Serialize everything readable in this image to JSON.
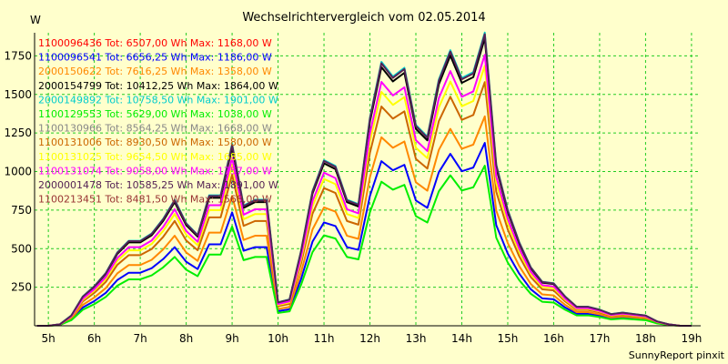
{
  "chart_data": {
    "type": "line",
    "title": "Wechselrichtervergleich vom 02.05.2014",
    "ylabel": "W",
    "footer": "SunnyReport pinxit",
    "background": "#ffffcc",
    "grid": true,
    "grid_color": "#22cc22",
    "legend_position": "top-left",
    "xlim": [
      4.7,
      19.2
    ],
    "ylim": [
      0,
      1900
    ],
    "x_ticks": [
      {
        "value": 5,
        "label": "5h"
      },
      {
        "value": 6,
        "label": "6h"
      },
      {
        "value": 7,
        "label": "7h"
      },
      {
        "value": 8,
        "label": "8h"
      },
      {
        "value": 9,
        "label": "9h"
      },
      {
        "value": 10,
        "label": "10h"
      },
      {
        "value": 11,
        "label": "11h"
      },
      {
        "value": 12,
        "label": "12h"
      },
      {
        "value": 13,
        "label": "13h"
      },
      {
        "value": 14,
        "label": "14h"
      },
      {
        "value": 15,
        "label": "15h"
      },
      {
        "value": 16,
        "label": "16h"
      },
      {
        "value": 17,
        "label": "17h"
      },
      {
        "value": 18,
        "label": "18h"
      },
      {
        "value": 19,
        "label": "19h"
      }
    ],
    "y_ticks": [
      {
        "value": 250,
        "label": "250"
      },
      {
        "value": 500,
        "label": "500"
      },
      {
        "value": 750,
        "label": "750"
      },
      {
        "value": 1000,
        "label": "1000"
      },
      {
        "value": 1250,
        "label": "1250"
      },
      {
        "value": 1500,
        "label": "1500"
      },
      {
        "value": 1750,
        "label": "1750"
      }
    ],
    "x": [
      4.75,
      5.0,
      5.25,
      5.5,
      5.75,
      6.0,
      6.25,
      6.5,
      6.75,
      7.0,
      7.25,
      7.5,
      7.75,
      8.0,
      8.25,
      8.5,
      8.75,
      9.0,
      9.25,
      9.5,
      9.75,
      10.0,
      10.25,
      10.5,
      10.75,
      11.0,
      11.25,
      11.5,
      11.75,
      12.0,
      12.25,
      12.5,
      12.75,
      13.0,
      13.25,
      13.5,
      13.75,
      14.0,
      14.25,
      14.5,
      14.75,
      15.0,
      15.25,
      15.5,
      15.75,
      16.0,
      16.25,
      16.5,
      16.75,
      17.0,
      17.25,
      17.5,
      17.75,
      18.0,
      18.25,
      18.5,
      18.75,
      19.0
    ],
    "base_profile": [
      0,
      0,
      0.005,
      0.035,
      0.1,
      0.135,
      0.18,
      0.25,
      0.29,
      0.29,
      0.315,
      0.365,
      0.43,
      0.35,
      0.31,
      0.445,
      0.445,
      0.62,
      0.41,
      0.43,
      0.43,
      0.08,
      0.09,
      0.255,
      0.46,
      0.565,
      0.545,
      0.43,
      0.415,
      0.71,
      0.9,
      0.85,
      0.88,
      0.685,
      0.645,
      0.84,
      0.94,
      0.845,
      0.865,
      1.0,
      0.55,
      0.395,
      0.285,
      0.2,
      0.15,
      0.145,
      0.1,
      0.065,
      0.065,
      0.055,
      0.04,
      0.045,
      0.04,
      0.035,
      0.015,
      0.005,
      0,
      0
    ],
    "series": [
      {
        "label": "1100096436 Tot: 6507,00 Wh Max: 1168,00 W",
        "color": "#ff0000",
        "scale": 1.0,
        "draw": false
      },
      {
        "label": "1100096541 Tot: 6656,25 Wh Max: 1186,00 W",
        "color": "#0000ff",
        "scale": 0.63,
        "draw": true
      },
      {
        "label": "2000150622 Tot: 7616,25 Wh Max: 1358,00 W",
        "color": "#ff8800",
        "scale": 0.72,
        "draw": true
      },
      {
        "label": "2000154799 Tot: 10412,25 Wh Max: 1864,00 W",
        "color": "#000000",
        "scale": 0.9,
        "draw": true
      },
      {
        "label": "2000149892 Tot: 10758,50 Wh Max: 1901,00 W",
        "color": "#00cccc",
        "scale": 1.03,
        "draw": true
      },
      {
        "label": "1100129553 Tot: 5629,00 Wh Max: 1038,00 W",
        "color": "#00ee00",
        "scale": 0.55,
        "draw": true
      },
      {
        "label": "1100130966 Tot: 8564,25 Wh Max: 1668,00 W",
        "color": "#888888",
        "scale": 0.8,
        "draw": false
      },
      {
        "label": "1100131006 Tot: 8930,50 Wh Max: 1580,00 W",
        "color": "#cc6600",
        "scale": 0.82,
        "draw": true
      },
      {
        "label": "1100131025 Tot: 9654,50 Wh Max: 1685,00 W",
        "color": "#ffff00",
        "scale": 0.88,
        "draw": true
      },
      {
        "label": "1100131074 Tot: 9058,00 Wh Max: 1757,00 W",
        "color": "#ff00ff",
        "scale": 0.95,
        "draw": true
      },
      {
        "label": "2000001478 Tot: 10585,25 Wh Max: 1891,00 W",
        "color": "#552255",
        "scale": 1.0,
        "draw": true
      },
      {
        "label": "1100213451 Tot: 8481,50 Wh Max: 1568,00 W",
        "color": "#993333",
        "scale": 0.8,
        "draw": false
      }
    ]
  }
}
